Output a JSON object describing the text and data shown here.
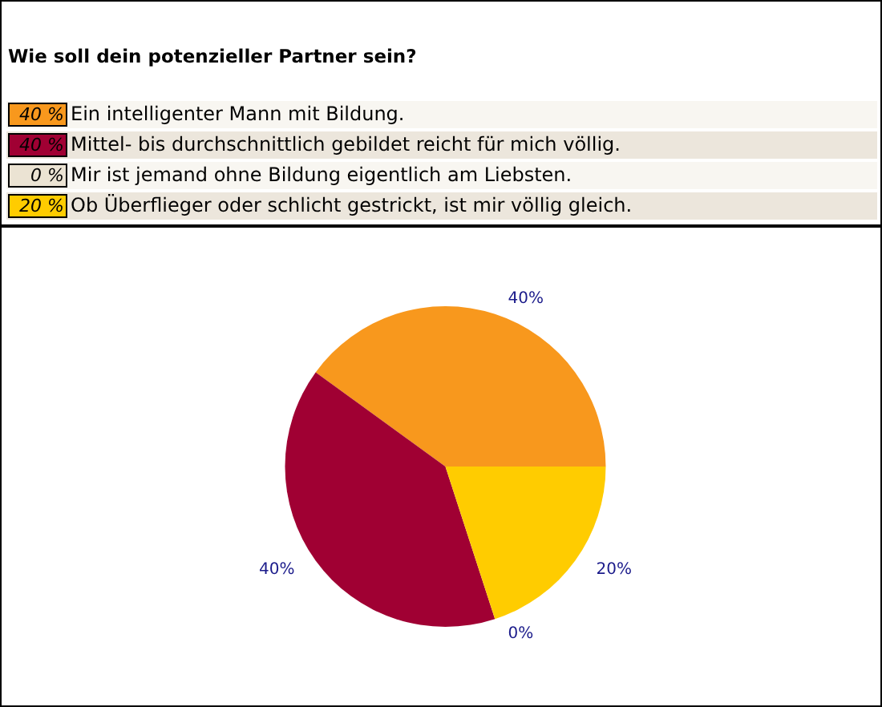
{
  "chart_data": {
    "type": "pie",
    "title": "Wie soll dein potenzieller Partner sein?",
    "categories": [
      "Ein intelligenter Mann mit Bildung.",
      "Mittel- bis durchschnittlich gebildet reicht für mich völlig.",
      "Mir ist jemand ohne Bildung eigentlich am Liebsten.",
      "Ob Überflieger oder schlicht gestrickt, ist mir völlig gleich."
    ],
    "values": [
      40,
      40,
      0,
      20
    ],
    "colors": [
      "#f8981d",
      "#a00033",
      "#ebe3d3",
      "#ffcc00"
    ],
    "value_labels": [
      "40%",
      "40%",
      "0%",
      "20%"
    ],
    "annotations": [
      "40 %",
      "40 %",
      "0 %",
      "20 %"
    ],
    "legend": "top"
  }
}
